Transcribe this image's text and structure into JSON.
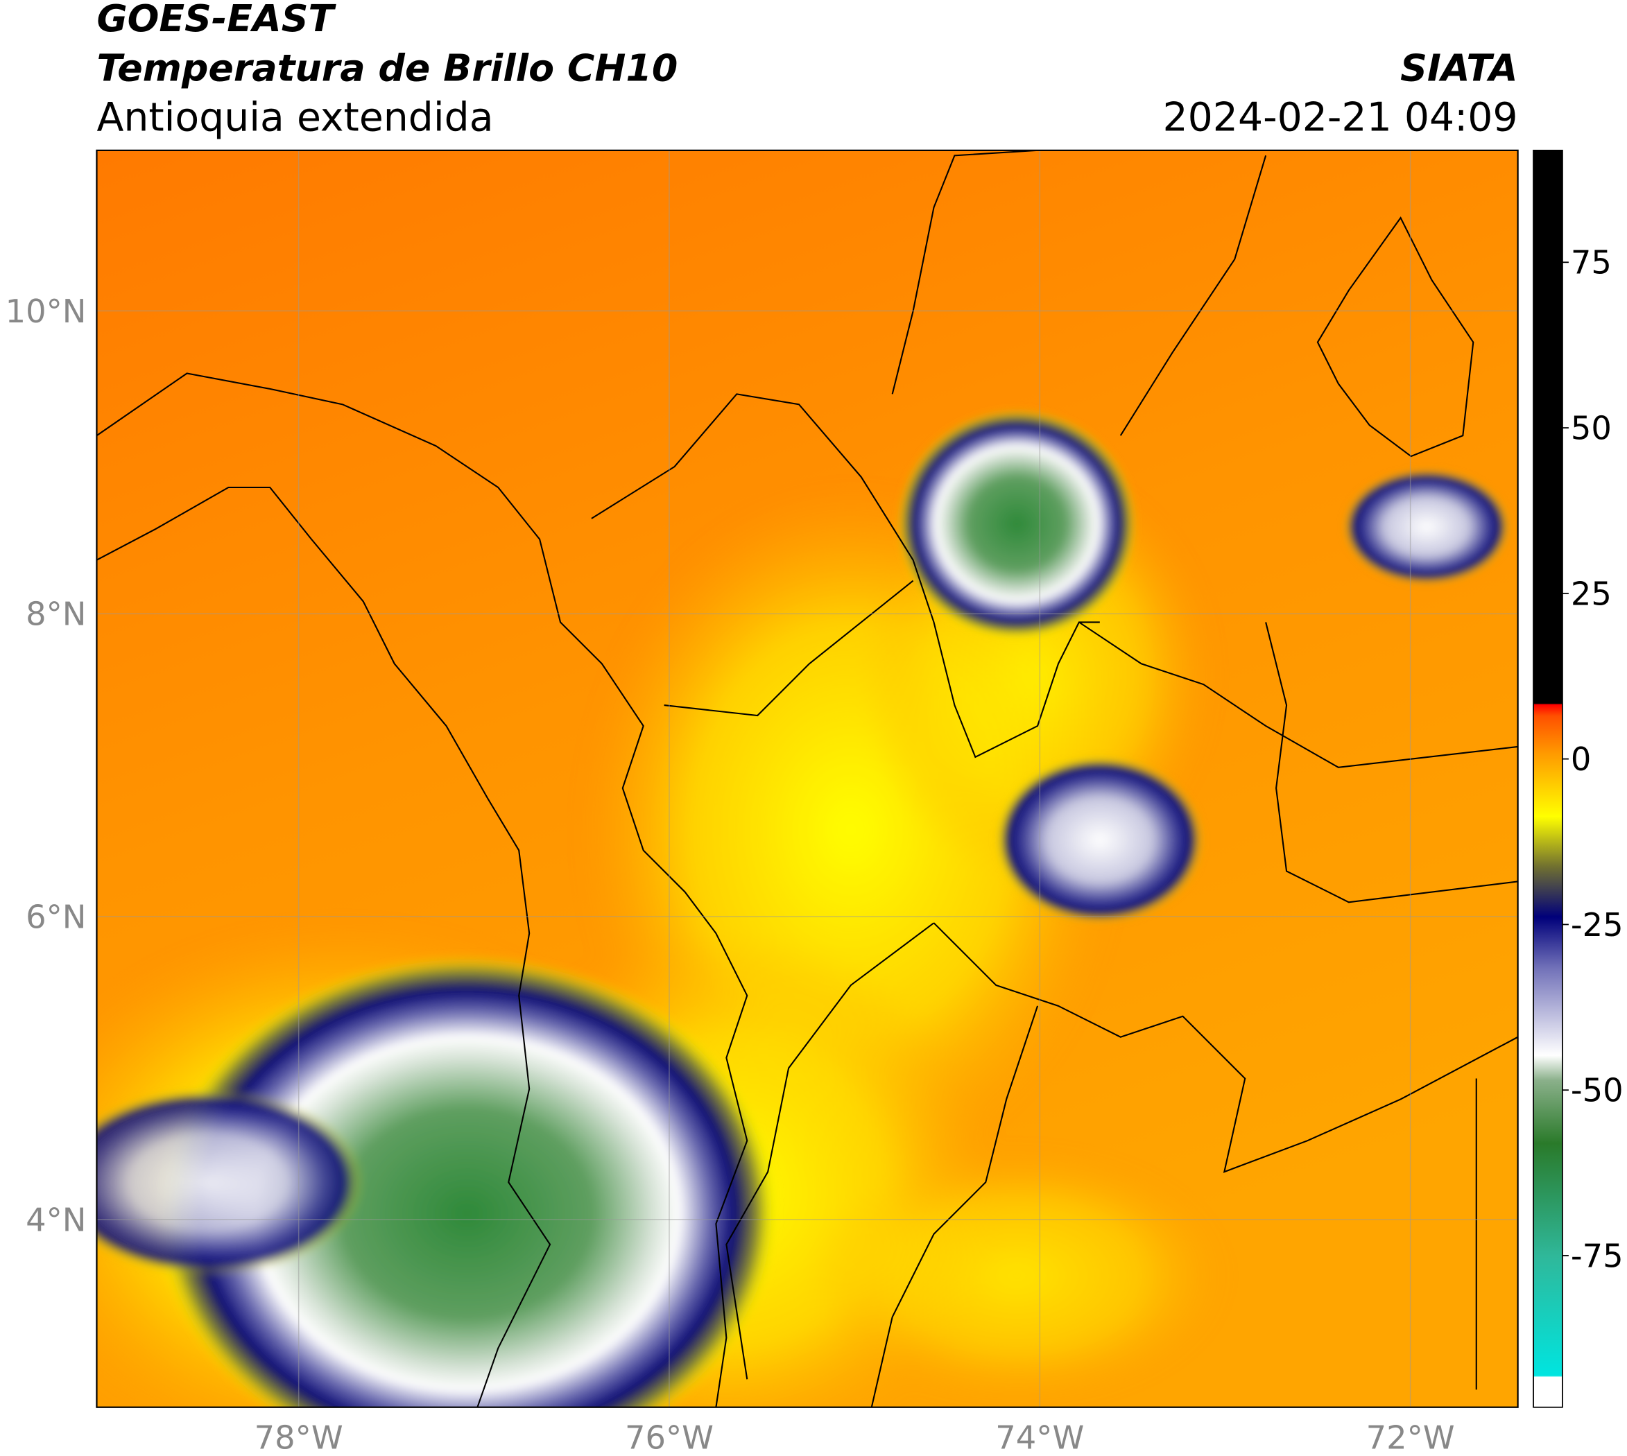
{
  "header": {
    "satellite": "GOES-EAST",
    "product": "Temperatura de Brillo CH10",
    "region": "Antioquia extendida",
    "agency": "SIATA",
    "datetime": "2024-02-21 04:09"
  },
  "map": {
    "xlim": [
      -79.09,
      -71.42
    ],
    "ylim": [
      2.76,
      11.06
    ],
    "xticks": [
      {
        "value": -78,
        "label": "78°W"
      },
      {
        "value": -76,
        "label": "76°W"
      },
      {
        "value": -74,
        "label": "74°W"
      },
      {
        "value": -72,
        "label": "72°W"
      }
    ],
    "yticks": [
      {
        "value": 10,
        "label": "10°N"
      },
      {
        "value": 8,
        "label": "8°N"
      },
      {
        "value": 6,
        "label": "6°N"
      },
      {
        "value": 4,
        "label": "4°N"
      }
    ],
    "grid": true
  },
  "colorbar": {
    "clim": [
      -97.9,
      91.9
    ],
    "ticks": [
      75,
      50,
      25,
      0,
      -25,
      -50,
      -75
    ]
  }
}
